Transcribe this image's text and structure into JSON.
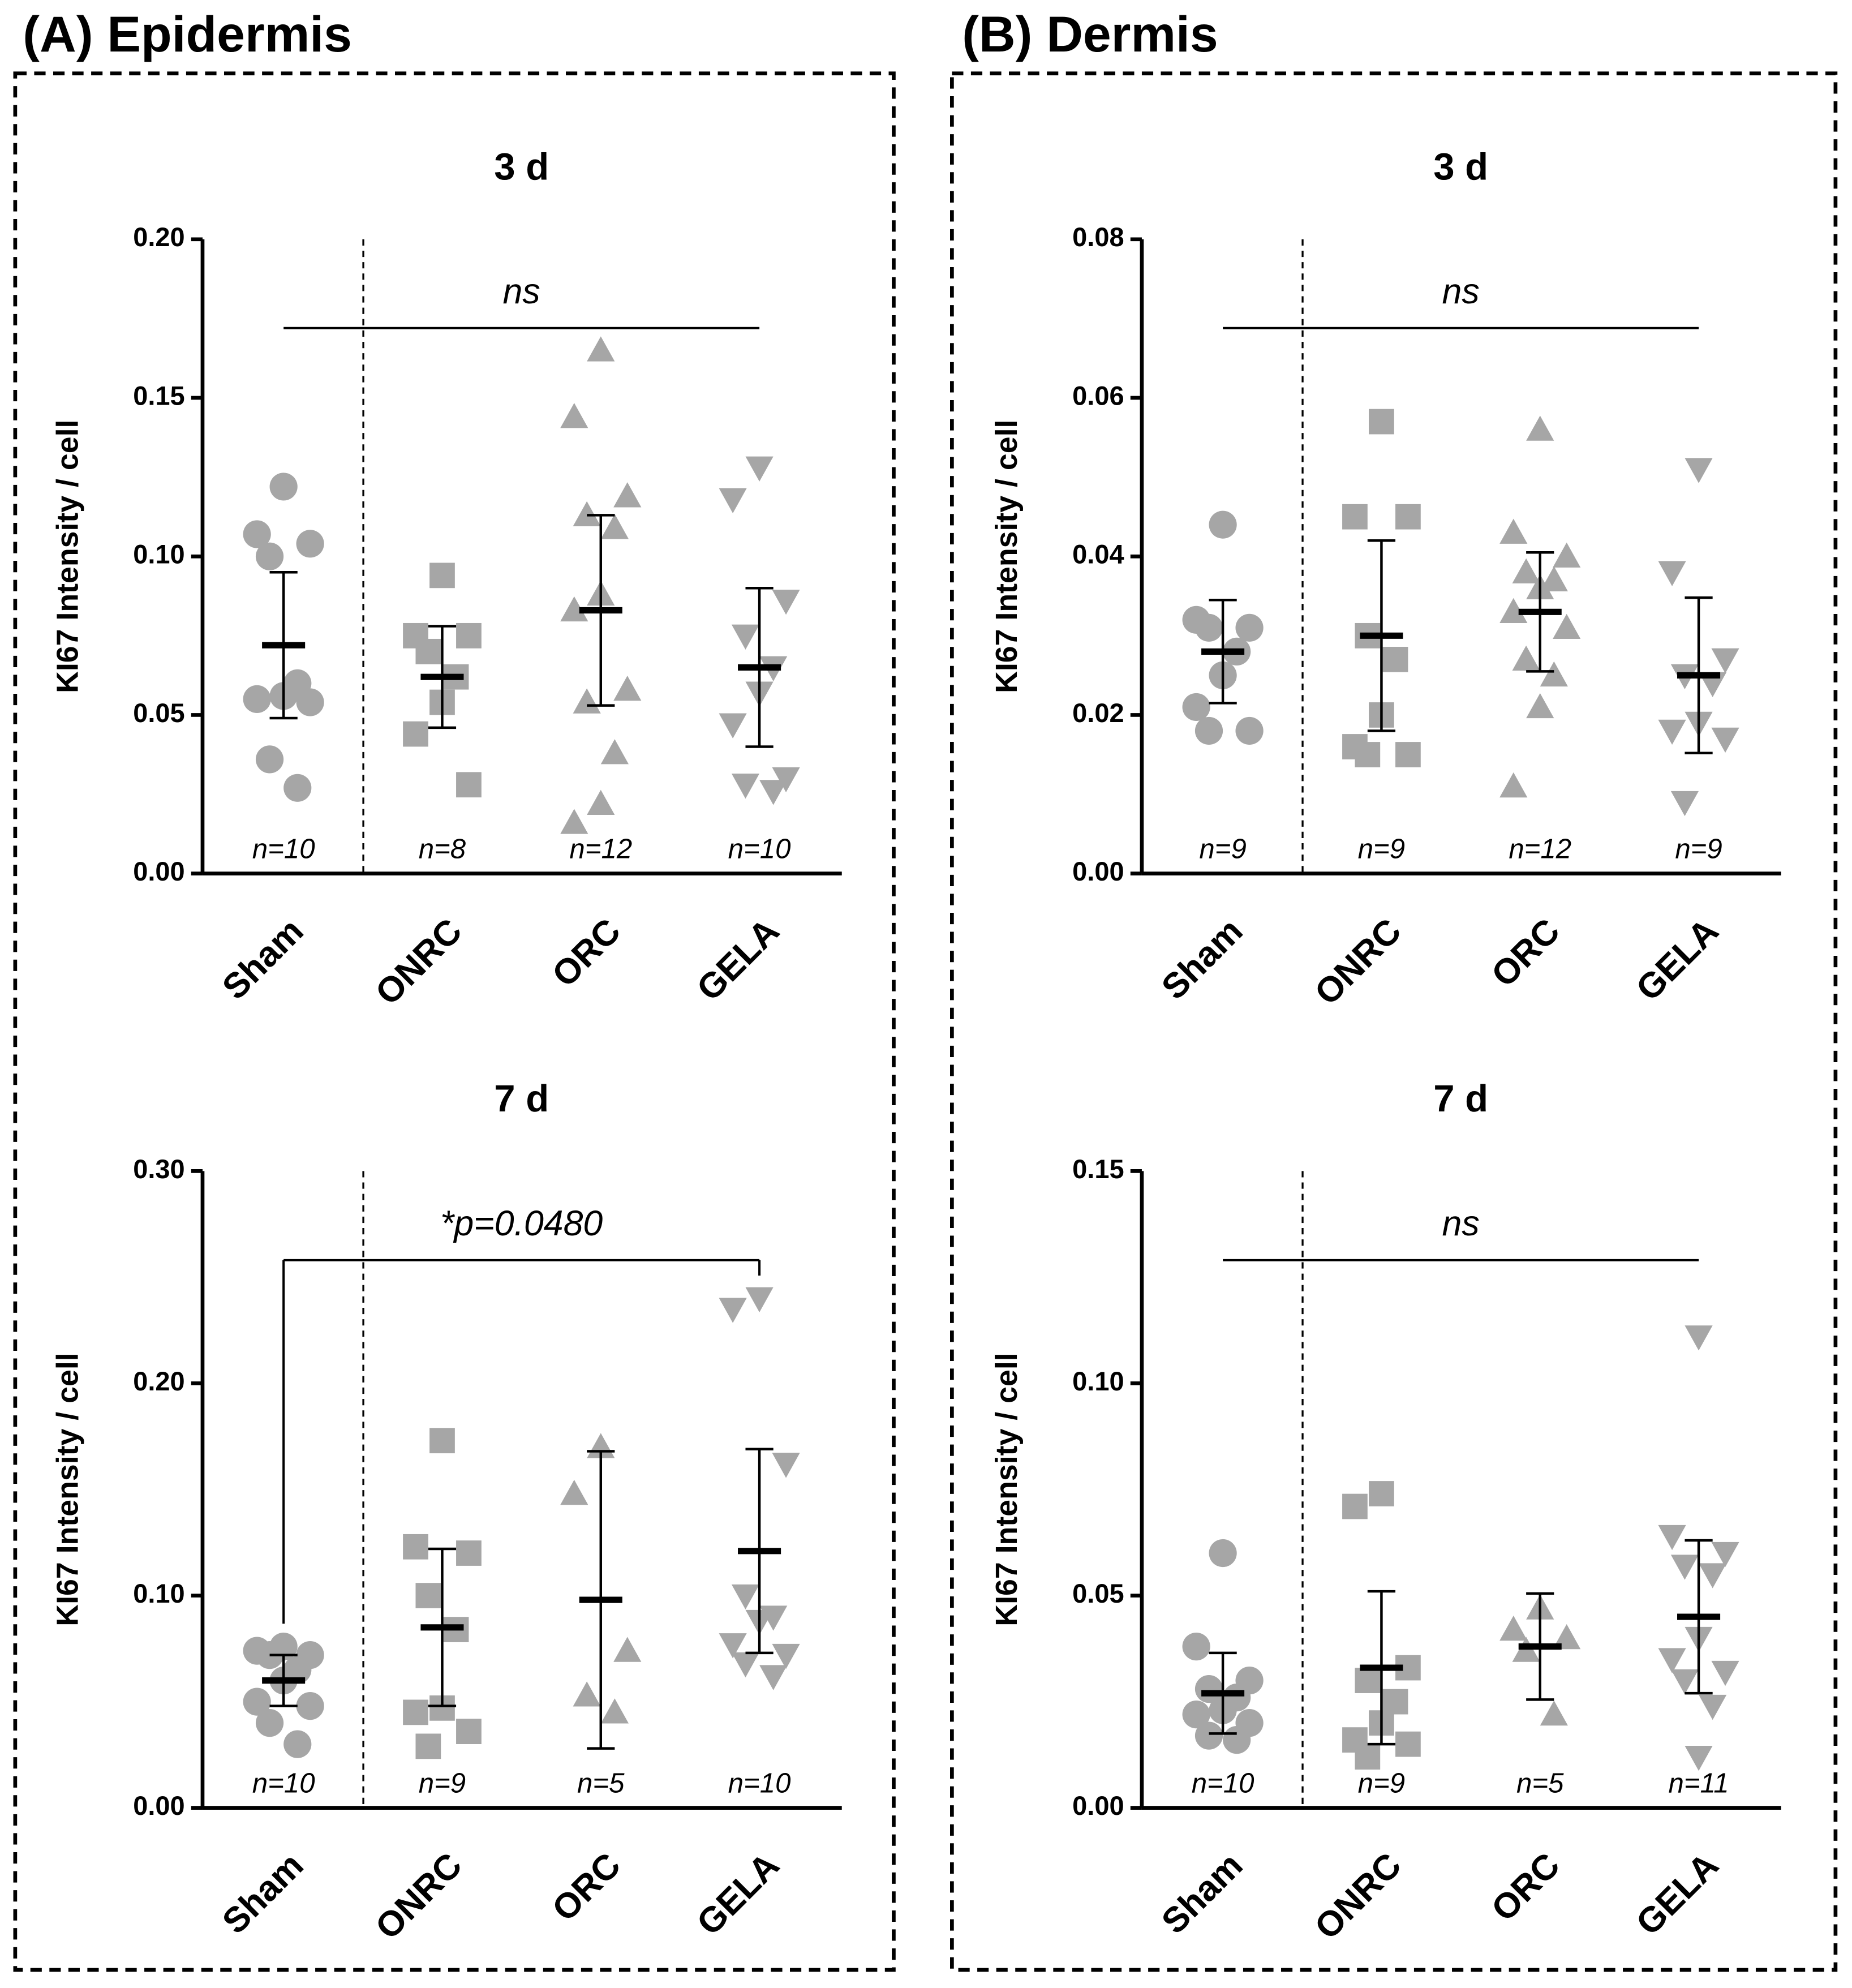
{
  "panels": [
    {
      "title": "(A) Epidermis"
    },
    {
      "title": "(B) Dermis"
    }
  ],
  "chart_data": [
    {
      "type": "strip",
      "title": "3 d",
      "ylabel": "KI67 Intensity / cell",
      "categories": [
        "Sham",
        "ONRC",
        "ORC",
        "GELA"
      ],
      "markers": [
        "circle",
        "square",
        "triangle-up",
        "triangle-down"
      ],
      "color": "#a6a6a6",
      "values": [
        [
          0.122,
          0.107,
          0.104,
          0.1,
          0.06,
          0.056,
          0.055,
          0.054,
          0.036,
          0.027
        ],
        [
          0.094,
          0.075,
          0.075,
          0.07,
          0.062,
          0.054,
          0.044,
          0.028
        ],
        [
          0.165,
          0.144,
          0.119,
          0.113,
          0.109,
          0.088,
          0.083,
          0.058,
          0.054,
          0.038,
          0.022,
          0.016
        ],
        [
          0.128,
          0.118,
          0.086,
          0.075,
          0.065,
          0.057,
          0.047,
          0.03,
          0.028,
          0.026
        ]
      ],
      "means": [
        0.072,
        0.062,
        0.083,
        0.065
      ],
      "errors": [
        0.023,
        0.016,
        0.03,
        0.025
      ],
      "n_labels": [
        "n=10",
        "n=8",
        "n=12",
        "n=10"
      ],
      "annotation": "ns",
      "bracket": false,
      "ylim": [
        0,
        0.2
      ],
      "yticks": [
        {
          "value": 0,
          "label": "0.00"
        },
        {
          "value": 0.05,
          "label": "0.05"
        },
        {
          "value": 0.1,
          "label": "0.10"
        },
        {
          "value": 0.15,
          "label": "0.15"
        },
        {
          "value": 0.2,
          "label": "0.20"
        }
      ]
    },
    {
      "type": "strip",
      "title": "3 d",
      "ylabel": "KI67 Intensity / cell",
      "categories": [
        "Sham",
        "ONRC",
        "ORC",
        "GELA"
      ],
      "markers": [
        "circle",
        "square",
        "triangle-up",
        "triangle-down"
      ],
      "color": "#a6a6a6",
      "values": [
        [
          0.044,
          0.032,
          0.031,
          0.031,
          0.028,
          0.025,
          0.021,
          0.018,
          0.018
        ],
        [
          0.057,
          0.045,
          0.045,
          0.03,
          0.027,
          0.02,
          0.016,
          0.015,
          0.015
        ],
        [
          0.056,
          0.043,
          0.04,
          0.038,
          0.037,
          0.036,
          0.033,
          0.031,
          0.027,
          0.025,
          0.021,
          0.011
        ],
        [
          0.051,
          0.038,
          0.027,
          0.025,
          0.024,
          0.019,
          0.018,
          0.017,
          0.009
        ]
      ],
      "means": [
        0.028,
        0.03,
        0.033,
        0.025
      ],
      "errors": [
        0.0065,
        0.012,
        0.0075,
        0.0098
      ],
      "n_labels": [
        "n=9",
        "n=9",
        "n=12",
        "n=9"
      ],
      "annotation": "ns",
      "bracket": false,
      "ylim": [
        0,
        0.08
      ],
      "yticks": [
        {
          "value": 0,
          "label": "0.00"
        },
        {
          "value": 0.02,
          "label": "0.02"
        },
        {
          "value": 0.04,
          "label": "0.04"
        },
        {
          "value": 0.06,
          "label": "0.06"
        },
        {
          "value": 0.08,
          "label": "0.08"
        }
      ]
    },
    {
      "type": "strip",
      "title": "7 d",
      "ylabel": "KI67 Intensity / cell",
      "categories": [
        "Sham",
        "ONRC",
        "ORC",
        "GELA"
      ],
      "markers": [
        "circle",
        "square",
        "triangle-up",
        "triangle-down"
      ],
      "color": "#a6a6a6",
      "values": [
        [
          0.076,
          0.074,
          0.072,
          0.072,
          0.065,
          0.06,
          0.05,
          0.048,
          0.04,
          0.03
        ],
        [
          0.173,
          0.123,
          0.12,
          0.1,
          0.084,
          0.047,
          0.045,
          0.036,
          0.029
        ],
        [
          0.17,
          0.148,
          0.074,
          0.053,
          0.045
        ],
        [
          0.24,
          0.235,
          0.162,
          0.1,
          0.09,
          0.088,
          0.077,
          0.072,
          0.068,
          0.062
        ]
      ],
      "means": [
        0.06,
        0.085,
        0.098,
        0.121
      ],
      "errors": [
        0.012,
        0.037,
        0.07,
        0.048
      ],
      "n_labels": [
        "n=10",
        "n=9",
        "n=5",
        "n=10"
      ],
      "annotation": "*p=0.0480",
      "bracket": true,
      "ylim": [
        0,
        0.3
      ],
      "yticks": [
        {
          "value": 0,
          "label": "0.00"
        },
        {
          "value": 0.1,
          "label": "0.10"
        },
        {
          "value": 0.2,
          "label": "0.20"
        },
        {
          "value": 0.3,
          "label": "0.30"
        }
      ]
    },
    {
      "type": "strip",
      "title": "7 d",
      "ylabel": "KI67 Intensity / cell",
      "categories": [
        "Sham",
        "ONRC",
        "ORC",
        "GELA"
      ],
      "markers": [
        "circle",
        "square",
        "triangle-up",
        "triangle-down"
      ],
      "color": "#a6a6a6",
      "values": [
        [
          0.06,
          0.038,
          0.03,
          0.028,
          0.026,
          0.023,
          0.022,
          0.02,
          0.017,
          0.016
        ],
        [
          0.074,
          0.071,
          0.033,
          0.03,
          0.025,
          0.02,
          0.016,
          0.015,
          0.012
        ],
        [
          0.047,
          0.042,
          0.04,
          0.037,
          0.022
        ],
        [
          0.111,
          0.064,
          0.06,
          0.057,
          0.055,
          0.04,
          0.035,
          0.032,
          0.03,
          0.024,
          0.012
        ]
      ],
      "means": [
        0.027,
        0.033,
        0.038,
        0.045
      ],
      "errors": [
        0.0095,
        0.018,
        0.0125,
        0.018
      ],
      "n_labels": [
        "n=10",
        "n=9",
        "n=5",
        "n=11"
      ],
      "annotation": "ns",
      "bracket": false,
      "ylim": [
        0,
        0.15
      ],
      "yticks": [
        {
          "value": 0,
          "label": "0.00"
        },
        {
          "value": 0.05,
          "label": "0.05"
        },
        {
          "value": 0.1,
          "label": "0.10"
        },
        {
          "value": 0.15,
          "label": "0.15"
        }
      ]
    }
  ]
}
